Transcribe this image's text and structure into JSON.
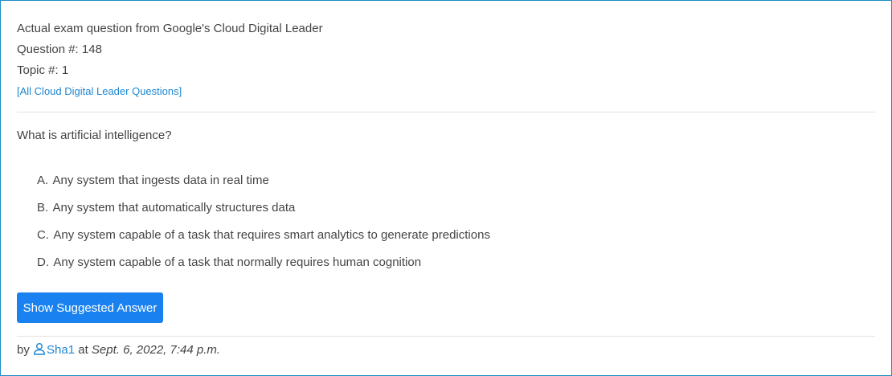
{
  "header": {
    "exam_line": "Actual exam question from Google's Cloud Digital Leader",
    "question_number": "Question #: 148",
    "topic": "Topic #: 1",
    "all_questions_link": "[All Cloud Digital Leader Questions]"
  },
  "question": {
    "text": "What is artificial intelligence?",
    "choices": [
      {
        "letter": "A.",
        "text": "Any system that ingests data in real time"
      },
      {
        "letter": "B.",
        "text": "Any system that automatically structures data"
      },
      {
        "letter": "C.",
        "text": "Any system capable of a task that requires smart analytics to generate predictions"
      },
      {
        "letter": "D.",
        "text": "Any system capable of a task that normally requires human cognition"
      }
    ]
  },
  "actions": {
    "show_answer_label": "Show Suggested Answer"
  },
  "footer": {
    "by": "by",
    "user_icon": "user-icon",
    "username": "Sha1",
    "at": "at",
    "date": "Sept. 6, 2022, 7:44 p.m."
  },
  "colors": {
    "border": "#1b8cc4",
    "link": "#1d86d1",
    "button": "#1a82f0",
    "text": "#444444"
  }
}
